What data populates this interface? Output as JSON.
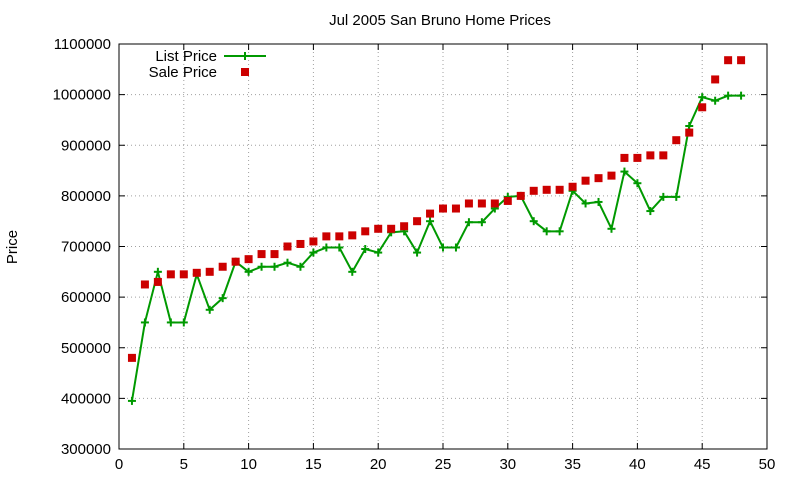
{
  "chart_data": {
    "type": "scatter",
    "title": "Jul 2005 San Bruno Home Prices",
    "xlabel": "",
    "ylabel": "Price",
    "xlim": [
      0,
      50
    ],
    "ylim": [
      300000,
      1100000
    ],
    "xticks": [
      0,
      5,
      10,
      15,
      20,
      25,
      30,
      35,
      40,
      45,
      50
    ],
    "yticks": [
      300000,
      400000,
      500000,
      600000,
      700000,
      800000,
      900000,
      1000000,
      1100000
    ],
    "grid": true,
    "legend_position": "top-left",
    "series": [
      {
        "name": "List Price",
        "style": "linespoints",
        "marker": "plus",
        "color": "#009900",
        "x": [
          1,
          2,
          3,
          4,
          5,
          6,
          7,
          8,
          9,
          10,
          11,
          12,
          13,
          14,
          15,
          16,
          17,
          18,
          19,
          20,
          21,
          22,
          23,
          24,
          25,
          26,
          27,
          28,
          29,
          30,
          31,
          32,
          33,
          34,
          35,
          36,
          37,
          38,
          39,
          40,
          41,
          42,
          43,
          44,
          45,
          46,
          47,
          48
        ],
        "y": [
          395000,
          550000,
          650000,
          550000,
          550000,
          645000,
          575000,
          598000,
          670000,
          650000,
          660000,
          660000,
          668000,
          660000,
          688000,
          698000,
          698000,
          650000,
          695000,
          688000,
          728000,
          730000,
          688000,
          750000,
          698000,
          698000,
          748000,
          748000,
          775000,
          798000,
          800000,
          750000,
          730000,
          730000,
          810000,
          785000,
          788000,
          735000,
          848000,
          825000,
          770000,
          798000,
          798000,
          938000,
          995000,
          988000,
          998000,
          998000
        ]
      },
      {
        "name": "Sale Price",
        "style": "points",
        "marker": "square",
        "color": "#cc0000",
        "x": [
          1,
          2,
          3,
          4,
          5,
          6,
          7,
          8,
          9,
          10,
          11,
          12,
          13,
          14,
          15,
          16,
          17,
          18,
          19,
          20,
          21,
          22,
          23,
          24,
          25,
          26,
          27,
          28,
          29,
          30,
          31,
          32,
          33,
          34,
          35,
          36,
          37,
          38,
          39,
          40,
          41,
          42,
          43,
          44,
          45,
          46,
          47,
          48
        ],
        "y": [
          480000,
          625000,
          630000,
          645000,
          645000,
          648000,
          650000,
          660000,
          670000,
          675000,
          685000,
          685000,
          700000,
          705000,
          710000,
          720000,
          720000,
          722000,
          730000,
          735000,
          735000,
          740000,
          750000,
          765000,
          775000,
          775000,
          785000,
          785000,
          785000,
          790000,
          800000,
          810000,
          812000,
          812000,
          818000,
          830000,
          835000,
          840000,
          875000,
          875000,
          880000,
          880000,
          910000,
          925000,
          975000,
          1030000,
          1068000,
          1068000
        ]
      }
    ]
  }
}
